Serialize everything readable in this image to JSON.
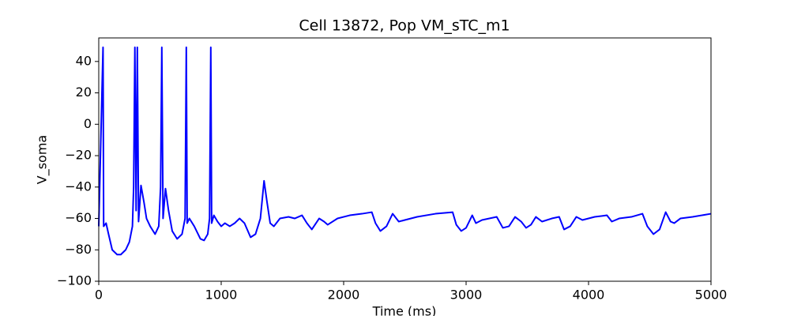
{
  "chart_data": {
    "type": "line",
    "title": "Cell 13872, Pop VM_sTC_m1",
    "x_label": "Time (ms)",
    "y_label": "V_soma",
    "color": "#0000ff",
    "xlim": [
      0,
      5000
    ],
    "ylim": [
      -100,
      55
    ],
    "xticks": [
      0,
      1000,
      2000,
      3000,
      4000,
      5000
    ],
    "yticks": [
      {
        "value": -100,
        "label": "−100"
      },
      {
        "value": -80,
        "label": "−80"
      },
      {
        "value": -60,
        "label": "−60"
      },
      {
        "value": -40,
        "label": "−40"
      },
      {
        "value": -20,
        "label": "−20"
      },
      0,
      20,
      40
    ],
    "x": [
      0,
      35,
      40,
      60,
      80,
      110,
      150,
      180,
      220,
      250,
      275,
      285,
      295,
      305,
      315,
      325,
      345,
      370,
      390,
      420,
      460,
      490,
      505,
      515,
      525,
      545,
      570,
      600,
      640,
      680,
      705,
      715,
      722,
      740,
      780,
      830,
      860,
      890,
      905,
      915,
      922,
      940,
      970,
      1000,
      1030,
      1070,
      1110,
      1150,
      1190,
      1240,
      1280,
      1320,
      1350,
      1375,
      1400,
      1430,
      1480,
      1550,
      1600,
      1660,
      1700,
      1740,
      1800,
      1840,
      1870,
      1950,
      2050,
      2150,
      2230,
      2260,
      2300,
      2350,
      2400,
      2450,
      2500,
      2600,
      2750,
      2890,
      2920,
      2960,
      3000,
      3050,
      3080,
      3130,
      3250,
      3300,
      3350,
      3400,
      3450,
      3490,
      3530,
      3570,
      3620,
      3700,
      3760,
      3800,
      3850,
      3900,
      3950,
      4050,
      4150,
      4190,
      4250,
      4350,
      4440,
      4480,
      4530,
      4580,
      4630,
      4670,
      4700,
      4750,
      4850,
      5000
    ],
    "values": [
      -65,
      49,
      -65,
      -63,
      -70,
      -80,
      -83,
      -83,
      -80,
      -75,
      -65,
      -40,
      49,
      -55,
      49,
      -62,
      -39,
      -50,
      -60,
      -65,
      -70,
      -65,
      -40,
      49,
      -60,
      -41,
      -55,
      -68,
      -73,
      -70,
      -60,
      49,
      -63,
      -60,
      -65,
      -73,
      -74,
      -70,
      -60,
      49,
      -63,
      -58,
      -62,
      -65,
      -63,
      -65,
      -63,
      -60,
      -63,
      -72,
      -70,
      -60,
      -36,
      -50,
      -63,
      -65,
      -60,
      -59,
      -60,
      -58,
      -63,
      -67,
      -60,
      -62,
      -64,
      -60,
      -58,
      -57,
      -56,
      -63,
      -68,
      -65,
      -57,
      -62,
      -61,
      -59,
      -57,
      -56,
      -64,
      -68,
      -66,
      -58,
      -63,
      -61,
      -59,
      -66,
      -65,
      -59,
      -62,
      -66,
      -64,
      -59,
      -62,
      -60,
      -59,
      -67,
      -65,
      -59,
      -61,
      -59,
      -58,
      -62,
      -60,
      -59,
      -57,
      -65,
      -70,
      -67,
      -56,
      -62,
      -63,
      -60,
      -59,
      -57
    ]
  }
}
